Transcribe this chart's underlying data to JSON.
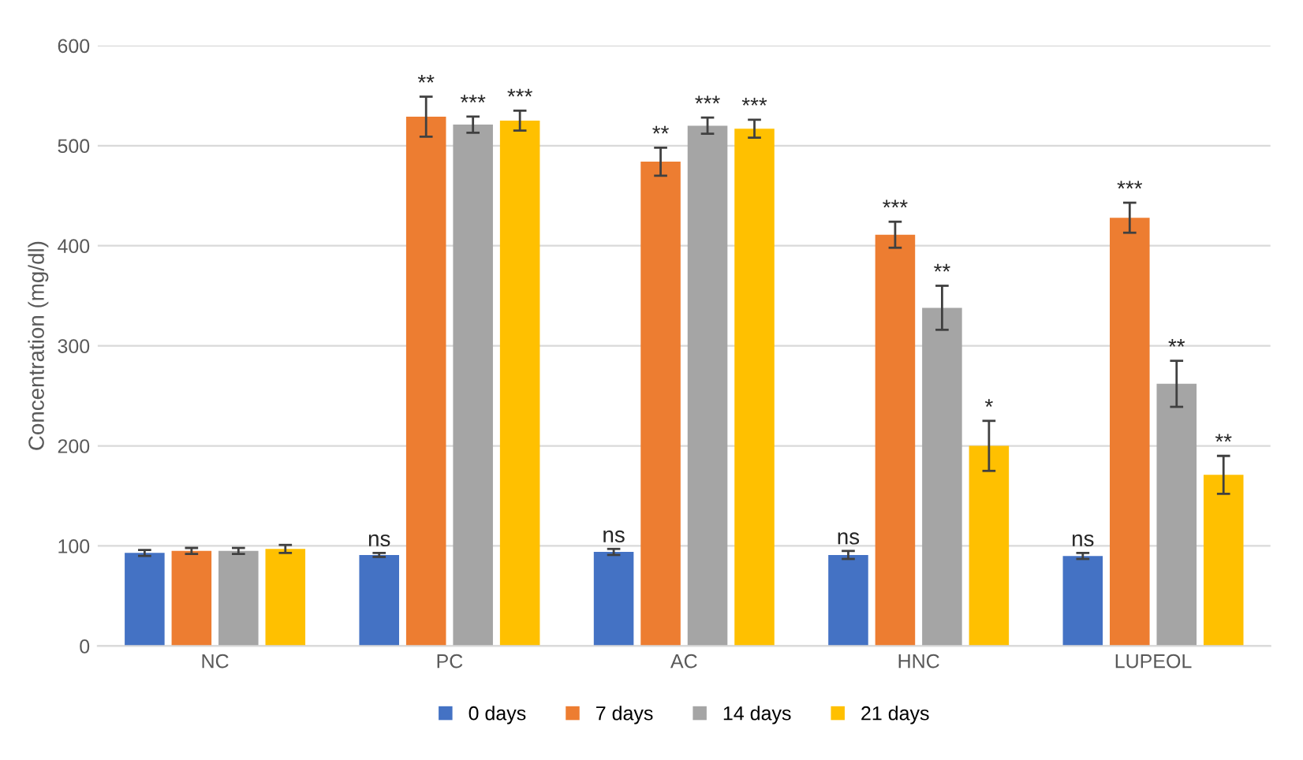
{
  "chart_data": {
    "type": "bar",
    "ylabel": "Concentration (mg/dl)",
    "categories": [
      "NC",
      "PC",
      "AC",
      "HNC",
      "LUPEOL"
    ],
    "series": [
      {
        "name": "0 days",
        "color": "#4472c4",
        "values": [
          93,
          91,
          94,
          91,
          90
        ],
        "errors": [
          3,
          2,
          3,
          4,
          3
        ],
        "value_labels": [
          null,
          "ns",
          "ns",
          "ns",
          "ns"
        ]
      },
      {
        "name": "7 days",
        "color": "#ed7d31",
        "values": [
          95,
          529,
          484,
          411,
          428
        ],
        "errors": [
          3,
          20,
          14,
          13,
          15
        ],
        "value_labels": [
          null,
          "**",
          "**",
          "***",
          "***"
        ]
      },
      {
        "name": "14 days",
        "color": "#a5a5a5",
        "values": [
          95,
          521,
          520,
          338,
          262
        ],
        "errors": [
          3,
          8,
          8,
          22,
          23
        ],
        "value_labels": [
          null,
          "***",
          "***",
          "**",
          "**"
        ]
      },
      {
        "name": "21 days",
        "color": "#ffc000",
        "values": [
          97,
          525,
          517,
          200,
          171
        ],
        "errors": [
          4,
          10,
          9,
          25,
          19
        ],
        "value_labels": [
          null,
          "***",
          "***",
          "*",
          "**"
        ]
      }
    ],
    "ylim": [
      0,
      600
    ],
    "yticks": [
      0,
      100,
      200,
      300,
      400,
      500,
      600
    ],
    "grid": "y",
    "legend": "bottom"
  }
}
